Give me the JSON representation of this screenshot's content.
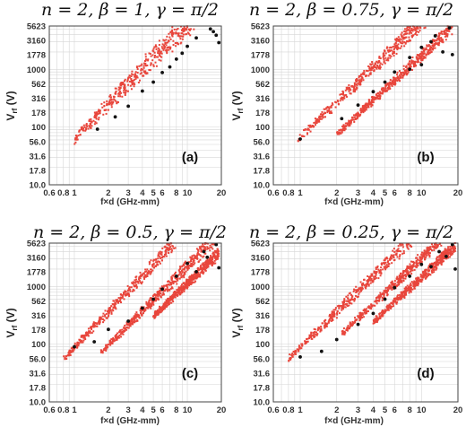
{
  "colors": {
    "red_points": "#e8463c",
    "black_points": "#111111",
    "grid": "#d6d6d6",
    "frame": "#444444"
  },
  "chart_data": [
    {
      "type": "scatter",
      "title": "n = 2, β = 1, γ = π/2",
      "panel_label": "(a)",
      "xlabel": "f×d (GHz-mm)",
      "ylabel": "Vrf (V)",
      "xscale": "log",
      "yscale": "log",
      "xlim": [
        0.6,
        20
      ],
      "ylim": [
        10,
        5623
      ],
      "xticks": [
        "0.6",
        "0.8",
        "1",
        "2",
        "3",
        "4",
        "5",
        "6",
        "8",
        "10",
        "20"
      ],
      "yticks": [
        "5623",
        "3160",
        "1778",
        "1000",
        "562",
        "316",
        "178",
        "100",
        "56.0",
        "31.6",
        "17.8",
        "10.0"
      ],
      "grid": true,
      "bands": [
        {
          "x_start": 1.0,
          "x_end": 15,
          "v_start": 63,
          "slope": 2.0,
          "width": 0.85,
          "series": "red"
        }
      ],
      "black_points": [
        [
          1.6,
          92
        ],
        [
          2.3,
          150
        ],
        [
          3.0,
          230
        ],
        [
          4.0,
          420
        ],
        [
          5.0,
          600
        ],
        [
          6.0,
          880
        ],
        [
          8.0,
          1500
        ],
        [
          10.0,
          2500
        ],
        [
          12,
          3500
        ],
        [
          16,
          5000
        ],
        [
          18,
          3900
        ],
        [
          19,
          2900
        ],
        [
          17,
          4500
        ],
        [
          9,
          1900
        ],
        [
          7,
          1100
        ]
      ]
    },
    {
      "type": "scatter",
      "title": "n = 2, β = 0.75, γ = π/2",
      "panel_label": "(b)",
      "xlabel": "f×d (GHz-mm)",
      "ylabel": "Vrf (V)",
      "xscale": "log",
      "yscale": "log",
      "xlim": [
        0.6,
        20
      ],
      "ylim": [
        10,
        5623
      ],
      "xticks": [
        "0.6",
        "0.8",
        "1",
        "2",
        "3",
        "4",
        "5",
        "6",
        "8",
        "10",
        "20"
      ],
      "yticks": [
        "5623",
        "3160",
        "1778",
        "1000",
        "562",
        "316",
        "178",
        "100",
        "56.0",
        "31.6",
        "17.8",
        "10.0"
      ],
      "grid": true,
      "bands": [
        {
          "x_start": 0.95,
          "x_end": 15,
          "v_start": 60,
          "slope": 2.0,
          "width": 0.5,
          "series": "red"
        },
        {
          "x_start": 2.0,
          "x_end": 18,
          "v_start": 75,
          "slope": 1.95,
          "width": 0.35,
          "series": "red"
        }
      ],
      "black_points": [
        [
          1.0,
          62
        ],
        [
          2.2,
          140
        ],
        [
          3.0,
          240
        ],
        [
          4.0,
          410
        ],
        [
          5.0,
          600
        ],
        [
          6.0,
          900
        ],
        [
          8.0,
          1600
        ],
        [
          10,
          2400
        ],
        [
          13,
          3800
        ],
        [
          17,
          5200
        ],
        [
          15,
          2000
        ],
        [
          18,
          1800
        ],
        [
          12,
          3000
        ],
        [
          8,
          1000
        ],
        [
          10,
          1200
        ]
      ]
    },
    {
      "type": "scatter",
      "title": "n = 2, β = 0.5, γ = π/2",
      "panel_label": "(c)",
      "xlabel": "f×d (GHz-mm)",
      "ylabel": "Vrf (V)",
      "xscale": "log",
      "yscale": "log",
      "xlim": [
        0.6,
        20
      ],
      "ylim": [
        10,
        5623
      ],
      "xticks": [
        "0.6",
        "0.8",
        "1",
        "2",
        "3",
        "4",
        "5",
        "6",
        "8",
        "10",
        "20"
      ],
      "yticks": [
        "5623",
        "3160",
        "1778",
        "1000",
        "562",
        "316",
        "178",
        "100",
        "56.0",
        "31.6",
        "17.8",
        "10.0"
      ],
      "grid": true,
      "bands": [
        {
          "x_start": 0.8,
          "x_end": 15,
          "v_start": 55,
          "slope": 2.05,
          "width": 0.45,
          "series": "red"
        },
        {
          "x_start": 1.7,
          "x_end": 18,
          "v_start": 70,
          "slope": 1.95,
          "width": 0.4,
          "series": "red"
        },
        {
          "x_start": 5.0,
          "x_end": 19,
          "v_start": 300,
          "slope": 1.9,
          "width": 0.3,
          "series": "red"
        }
      ],
      "black_points": [
        [
          1.0,
          90
        ],
        [
          1.5,
          110
        ],
        [
          2.0,
          180
        ],
        [
          3.0,
          250
        ],
        [
          4.0,
          420
        ],
        [
          5.0,
          600
        ],
        [
          6.0,
          900
        ],
        [
          8.0,
          1500
        ],
        [
          10,
          2500
        ],
        [
          14,
          4000
        ],
        [
          18,
          5300
        ],
        [
          15,
          3200
        ],
        [
          19,
          2100
        ],
        [
          12,
          1800
        ]
      ]
    },
    {
      "type": "scatter",
      "title": "n = 2, β = 0.25, γ = π/2",
      "panel_label": "(d)",
      "xlabel": "f×d (GHz-mm)",
      "ylabel": "Vrf (V)",
      "xscale": "log",
      "yscale": "log",
      "xlim": [
        0.6,
        20
      ],
      "ylim": [
        10,
        5623
      ],
      "xticks": [
        "0.6",
        "0.8",
        "1",
        "2",
        "3",
        "4",
        "5",
        "6",
        "8",
        "10",
        "20"
      ],
      "yticks": [
        "5623",
        "3160",
        "1778",
        "1000",
        "562",
        "316",
        "178",
        "100",
        "56.0",
        "31.6",
        "17.8",
        "10.0"
      ],
      "grid": true,
      "bands": [
        {
          "x_start": 0.8,
          "x_end": 15,
          "v_start": 55,
          "slope": 2.05,
          "width": 0.5,
          "series": "red"
        },
        {
          "x_start": 2.2,
          "x_end": 18,
          "v_start": 150,
          "slope": 2.0,
          "width": 0.35,
          "series": "red"
        },
        {
          "x_start": 4.0,
          "x_end": 19,
          "v_start": 240,
          "slope": 1.95,
          "width": 0.3,
          "series": "red"
        }
      ],
      "black_points": [
        [
          1.0,
          60
        ],
        [
          1.5,
          75
        ],
        [
          2.0,
          120
        ],
        [
          3.0,
          220
        ],
        [
          4.0,
          340
        ],
        [
          5.0,
          600
        ],
        [
          6.0,
          950
        ],
        [
          8.0,
          1500
        ],
        [
          10,
          2400
        ],
        [
          14,
          4000
        ],
        [
          18,
          5300
        ],
        [
          16,
          3300
        ],
        [
          19,
          2000
        ],
        [
          12,
          2200
        ]
      ]
    }
  ]
}
